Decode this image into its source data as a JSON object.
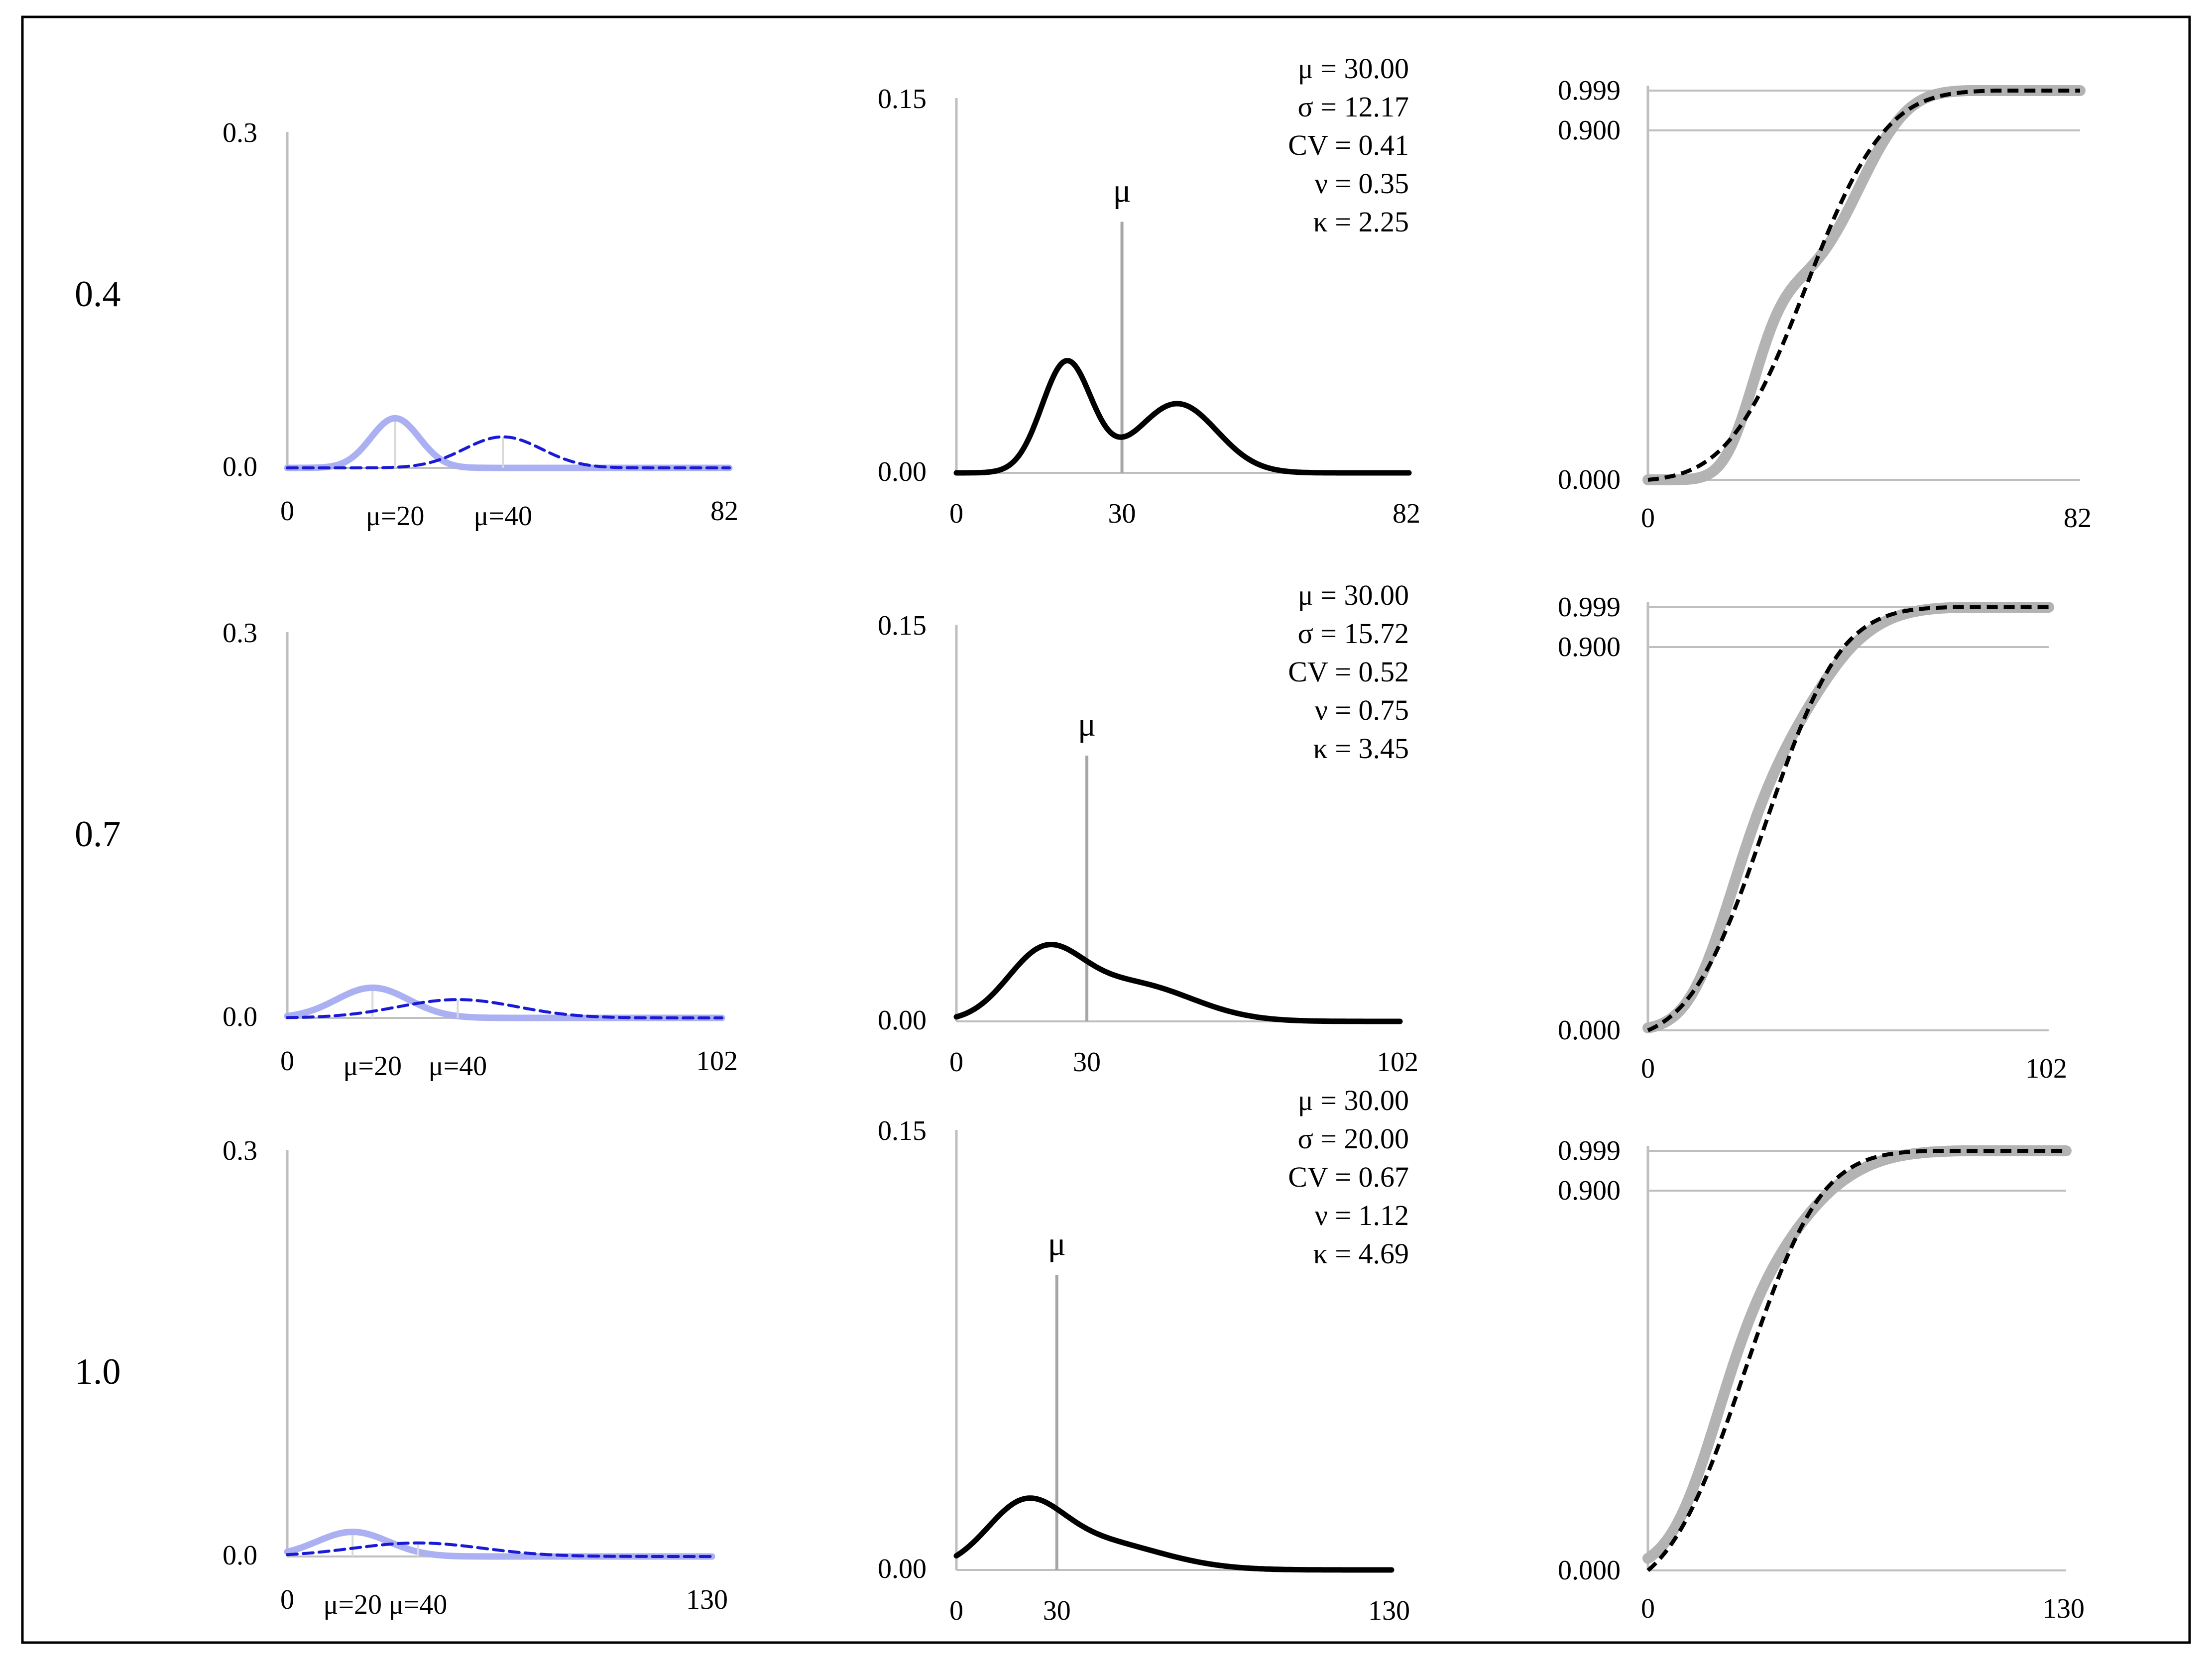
{
  "colors": {
    "frame": "#000000",
    "axis_gray": "#bfbfbf",
    "mu_line_gray": "#a6a6a6",
    "component_light": "#aab0f2",
    "component_dashed": "#1a1ad6",
    "mixture": "#000000",
    "cdf_gray_band": "#b3b3b3",
    "cdf_dashed": "#000000"
  },
  "chart_data": [
    {
      "row_label": "0.4",
      "panels": {
        "components": {
          "type": "line",
          "x_min_label": "0",
          "x_max_label": "82",
          "xlim": [
            0,
            82
          ],
          "y_min_label": "0.0",
          "y_max_label": "0.3",
          "ylim": [
            0,
            0.3
          ],
          "series": [
            {
              "name": "component mean 20",
              "style": "light-solid",
              "mean": 20,
              "sd": 4.5,
              "weight": 0.5
            },
            {
              "name": "component mean 40",
              "style": "blue-dashed",
              "mean": 40,
              "sd": 7.2,
              "weight": 0.5
            }
          ],
          "mean_labels": [
            "μ=20",
            "μ=40"
          ]
        },
        "mixture": {
          "type": "line",
          "x_min_label": "0",
          "x_mid_label": "30",
          "x_max_label": "82",
          "xlim": [
            0,
            82
          ],
          "y_min_label": "0.00",
          "y_max_label": "0.15",
          "ylim": [
            0,
            0.15
          ],
          "mean_marker": "μ",
          "mean_value": 30,
          "stats": [
            "μ = 30.00",
            "σ = 12.17",
            "CV = 0.41",
            "ν = 0.35",
            "κ = 2.25"
          ]
        },
        "cdf": {
          "type": "line",
          "x_min_label": "0",
          "x_max_label": "82",
          "xlim": [
            0,
            82
          ],
          "y_labels": [
            "0.999",
            "0.900",
            "0.000"
          ],
          "y_ticks": [
            0.999,
            0.9,
            0.0
          ],
          "series": [
            "mixture CDF (gray band)",
            "approximation (black dashed)"
          ]
        }
      }
    },
    {
      "row_label": "0.7",
      "panels": {
        "components": {
          "type": "line",
          "x_min_label": "0",
          "x_max_label": "102",
          "xlim": [
            0,
            102
          ],
          "y_min_label": "0.0",
          "y_max_label": "0.3",
          "ylim": [
            0,
            0.3
          ],
          "series": [
            {
              "name": "component mean 20",
              "style": "light-solid",
              "mean": 20,
              "sd": 8.5,
              "weight": 0.5
            },
            {
              "name": "component mean 40",
              "style": "blue-dashed",
              "mean": 40,
              "sd": 14,
              "weight": 0.5
            }
          ],
          "mean_labels": [
            "μ=20",
            "μ=40"
          ]
        },
        "mixture": {
          "type": "line",
          "x_min_label": "0",
          "x_mid_label": "30",
          "x_max_label": "102",
          "xlim": [
            0,
            102
          ],
          "y_min_label": "0.00",
          "y_max_label": "0.15",
          "ylim": [
            0,
            0.15
          ],
          "mean_marker": "μ",
          "mean_value": 30,
          "stats": [
            "μ = 30.00",
            "σ = 15.72",
            "CV = 0.52",
            "ν = 0.75",
            "κ = 3.45"
          ]
        },
        "cdf": {
          "type": "line",
          "x_min_label": "0",
          "x_max_label": "102",
          "xlim": [
            0,
            102
          ],
          "y_labels": [
            "0.999",
            "0.900",
            "0.000"
          ],
          "y_ticks": [
            0.999,
            0.9,
            0.0
          ],
          "series": [
            "mixture CDF (gray band)",
            "approximation (black dashed)"
          ]
        }
      }
    },
    {
      "row_label": "1.0",
      "panels": {
        "components": {
          "type": "line",
          "x_min_label": "0",
          "x_max_label": "130",
          "xlim": [
            0,
            130
          ],
          "y_min_label": "0.0",
          "y_max_label": "0.3",
          "ylim": [
            0,
            0.3
          ],
          "series": [
            {
              "name": "component mean 20",
              "style": "light-solid",
              "mean": 20,
              "sd": 11,
              "weight": 0.5
            },
            {
              "name": "component mean 40",
              "style": "blue-dashed",
              "mean": 40,
              "sd": 20,
              "weight": 0.5
            }
          ],
          "mean_labels": [
            "μ=20",
            "μ=40"
          ]
        },
        "mixture": {
          "type": "line",
          "x_min_label": "0",
          "x_mid_label": "30",
          "x_max_label": "130",
          "xlim": [
            0,
            130
          ],
          "y_min_label": "0.00",
          "y_max_label": "0.15",
          "ylim": [
            0,
            0.15
          ],
          "mean_marker": "μ",
          "mean_value": 30,
          "stats": [
            "μ = 30.00",
            "σ = 20.00",
            "CV = 0.67",
            "ν = 1.12",
            "κ = 4.69"
          ]
        },
        "cdf": {
          "type": "line",
          "x_min_label": "0",
          "x_max_label": "130",
          "xlim": [
            0,
            130
          ],
          "y_labels": [
            "0.999",
            "0.900",
            "0.000"
          ],
          "y_ticks": [
            0.999,
            0.9,
            0.0
          ],
          "series": [
            "mixture CDF (gray band)",
            "approximation (black dashed)"
          ]
        }
      }
    }
  ]
}
